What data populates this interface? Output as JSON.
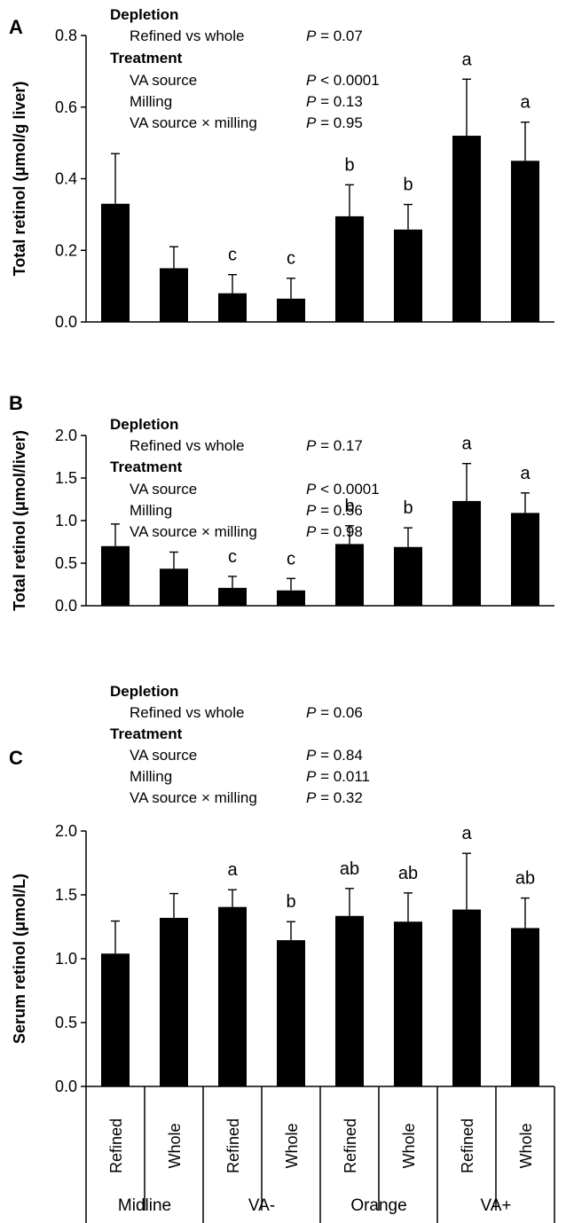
{
  "x_categories": [
    {
      "group": "Midline",
      "milling": "Refined"
    },
    {
      "group": "Midline",
      "milling": "Whole"
    },
    {
      "group": "VA-",
      "milling": "Refined"
    },
    {
      "group": "VA-",
      "milling": "Whole"
    },
    {
      "group": "Orange",
      "milling": "Refined"
    },
    {
      "group": "Orange",
      "milling": "Whole"
    },
    {
      "group": "VA+",
      "milling": "Refined"
    },
    {
      "group": "VA+",
      "milling": "Whole"
    }
  ],
  "x_groups": [
    "Midline",
    "VA-",
    "Orange",
    "VA+"
  ],
  "x_milling_labels": [
    "Refined",
    "Whole",
    "Refined",
    "Whole",
    "Refined",
    "Whole",
    "Refined",
    "Whole"
  ],
  "chart_data": [
    {
      "type": "bar",
      "panel": "A",
      "ylabel": "Total retinol (μmol/g liver)",
      "ylim": [
        0,
        0.8
      ],
      "yticks": [
        0,
        0.2,
        0.4,
        0.6,
        0.8
      ],
      "ytick_labels": [
        "0.0",
        "0.2",
        "0.4",
        "0.6",
        "0.8"
      ],
      "categories": [
        "Midline Refined",
        "Midline Whole",
        "VA- Refined",
        "VA- Whole",
        "Orange Refined",
        "Orange Whole",
        "VA+ Refined",
        "VA+ Whole"
      ],
      "values": [
        0.33,
        0.15,
        0.08,
        0.065,
        0.295,
        0.258,
        0.52,
        0.45
      ],
      "errors": [
        0.14,
        0.06,
        0.052,
        0.057,
        0.088,
        0.07,
        0.158,
        0.108
      ],
      "letters": [
        "",
        "",
        "c",
        "c",
        "b",
        "b",
        "a",
        "a"
      ],
      "annotations": [
        {
          "label": "Depletion",
          "heading": true
        },
        {
          "label": "Refined vs whole",
          "p": "P = 0.07"
        },
        {
          "label": "Treatment",
          "heading": true
        },
        {
          "label": "VA source",
          "p": "P < 0.0001"
        },
        {
          "label": "Milling",
          "p": "P = 0.13"
        },
        {
          "label": "VA source × milling",
          "p": "P = 0.95"
        }
      ],
      "grid": false
    },
    {
      "type": "bar",
      "panel": "B",
      "ylabel": "Total retinol (μmol/liver)",
      "ylim": [
        0,
        2.0
      ],
      "yticks": [
        0,
        0.5,
        1.0,
        1.5,
        2.0
      ],
      "ytick_labels": [
        "0.0",
        "0.5",
        "1.0",
        "1.5",
        "2.0"
      ],
      "categories": [
        "Midline Refined",
        "Midline Whole",
        "VA- Refined",
        "VA- Whole",
        "Orange Refined",
        "Orange Whole",
        "VA+ Refined",
        "VA+ Whole"
      ],
      "values": [
        0.7,
        0.435,
        0.21,
        0.18,
        0.725,
        0.69,
        1.23,
        1.09
      ],
      "errors": [
        0.26,
        0.195,
        0.135,
        0.14,
        0.215,
        0.225,
        0.44,
        0.235
      ],
      "letters": [
        "",
        "",
        "c",
        "c",
        "b",
        "b",
        "a",
        "a"
      ],
      "annotations": [
        {
          "label": "Depletion",
          "heading": true
        },
        {
          "label": "Refined vs whole",
          "p": "P = 0.17"
        },
        {
          "label": "Treatment",
          "heading": true
        },
        {
          "label": "VA source",
          "p": "P < 0.0001"
        },
        {
          "label": "Milling",
          "p": "P = 0.56"
        },
        {
          "label": "VA source × milling",
          "p": "P = 0.98"
        }
      ],
      "grid": false
    },
    {
      "type": "bar",
      "panel": "C",
      "ylabel": "Serum retinol (μmol/L)",
      "ylim": [
        0,
        2.0
      ],
      "yticks": [
        0,
        0.5,
        1.0,
        1.5,
        2.0
      ],
      "ytick_labels": [
        "0.0",
        "0.5",
        "1.0",
        "1.5",
        "2.0"
      ],
      "categories": [
        "Midline Refined",
        "Midline Whole",
        "VA- Refined",
        "VA- Whole",
        "Orange Refined",
        "Orange Whole",
        "VA+ Refined",
        "VA+ Whole"
      ],
      "values": [
        1.04,
        1.32,
        1.405,
        1.145,
        1.335,
        1.29,
        1.385,
        1.24
      ],
      "errors": [
        0.255,
        0.19,
        0.135,
        0.145,
        0.215,
        0.225,
        0.44,
        0.235
      ],
      "letters": [
        "",
        "",
        "a",
        "b",
        "ab",
        "ab",
        "a",
        "ab"
      ],
      "annotations": [
        {
          "label": "Depletion",
          "heading": true
        },
        {
          "label": "Refined vs whole",
          "p": "P = 0.06"
        },
        {
          "label": "Treatment",
          "heading": true
        },
        {
          "label": "VA source",
          "p": "P = 0.84"
        },
        {
          "label": "Milling",
          "p": "P = 0.011"
        },
        {
          "label": "VA source × milling",
          "p": "P = 0.32"
        }
      ],
      "grid": false
    }
  ]
}
